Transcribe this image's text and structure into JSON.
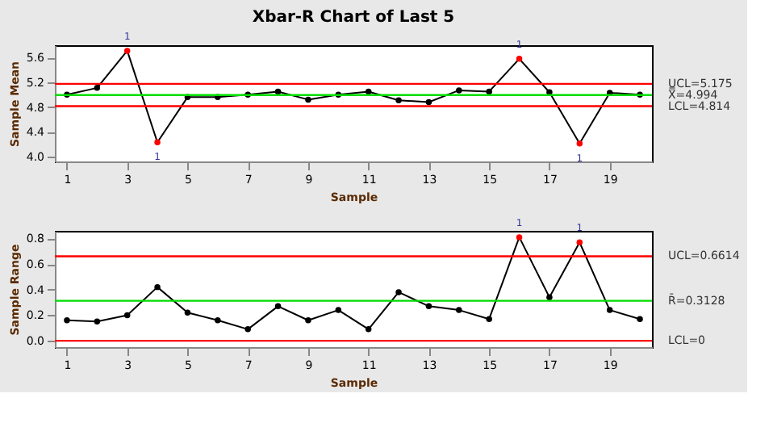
{
  "chart_data": [
    {
      "type": "line",
      "title": "Xbar-R Chart of Last 5",
      "xlabel": "Sample",
      "ylabel": "Sample Mean",
      "x": [
        1,
        2,
        3,
        4,
        5,
        6,
        7,
        8,
        9,
        10,
        11,
        12,
        13,
        14,
        15,
        16,
        17,
        18,
        19,
        20
      ],
      "series": [
        {
          "color": "#000000",
          "values": [
            5.0,
            5.11,
            5.71,
            4.23,
            4.96,
            4.96,
            5.0,
            5.05,
            4.92,
            5.0,
            5.05,
            4.91,
            4.88,
            5.07,
            5.05,
            5.58,
            5.04,
            4.21,
            5.03,
            5.0
          ],
          "colors": [
            "#000000",
            "#000000",
            "#ff0000",
            "#ff0000",
            "#000000",
            "#000000",
            "#000000",
            "#000000",
            "#000000",
            "#000000",
            "#000000",
            "#000000",
            "#000000",
            "#000000",
            "#000000",
            "#ff0000",
            "#000000",
            "#ff0000",
            "#000000",
            "#000000"
          ]
        }
      ],
      "xlim": [
        0.6,
        20.4
      ],
      "xticks": [
        1,
        3,
        5,
        7,
        9,
        11,
        13,
        15,
        17,
        19
      ],
      "ylim": [
        3.92,
        5.8
      ],
      "yticks": [
        {
          "value": 4,
          "label": "4.0"
        },
        4.4,
        4.8,
        5.2,
        5.6
      ],
      "line_style": "solid",
      "ref_lines": [
        {
          "axis": "y",
          "value": 5.175,
          "label": "UCL=5.175",
          "color": "#ff0000"
        },
        {
          "axis": "y",
          "value": 4.994,
          "label": "X̿=4.994",
          "color": "#00dd00"
        },
        {
          "axis": "y",
          "value": 4.814,
          "label": "LCL=4.814",
          "color": "#ff0000"
        }
      ],
      "annotations": [
        {
          "text": "1",
          "x": 3,
          "y": 5.71
        },
        {
          "text": "1",
          "x": 4,
          "y": 4.23
        },
        {
          "text": "1",
          "x": 16,
          "y": 5.58
        },
        {
          "text": "1",
          "x": 18,
          "y": 4.21
        }
      ],
      "marker": "circle",
      "grid": false
    },
    {
      "type": "line",
      "xlabel": "Sample",
      "ylabel": "Sample Range",
      "x": [
        1,
        2,
        3,
        4,
        5,
        6,
        7,
        8,
        9,
        10,
        11,
        12,
        13,
        14,
        15,
        16,
        17,
        18,
        19,
        20
      ],
      "series": [
        {
          "color": "#000000",
          "values": [
            0.16,
            0.15,
            0.2,
            0.42,
            0.22,
            0.16,
            0.09,
            0.27,
            0.16,
            0.24,
            0.09,
            0.38,
            0.27,
            0.24,
            0.17,
            0.81,
            0.34,
            0.77,
            0.24,
            0.17
          ],
          "colors": [
            "#000000",
            "#000000",
            "#000000",
            "#000000",
            "#000000",
            "#000000",
            "#000000",
            "#000000",
            "#000000",
            "#000000",
            "#000000",
            "#000000",
            "#000000",
            "#000000",
            "#000000",
            "#ff0000",
            "#000000",
            "#ff0000",
            "#000000",
            "#000000"
          ]
        }
      ],
      "xlim": [
        0.6,
        20.4
      ],
      "xticks": [
        1,
        3,
        5,
        7,
        9,
        11,
        13,
        15,
        17,
        19
      ],
      "ylim": [
        -0.05,
        0.86
      ],
      "yticks": [
        {
          "value": 0,
          "label": "0.0"
        },
        0.2,
        0.4,
        0.6,
        0.8
      ],
      "line_style": "solid",
      "ref_lines": [
        {
          "axis": "y",
          "value": 0.6614,
          "label": "UCL=0.6614",
          "color": "#ff0000"
        },
        {
          "axis": "y",
          "value": 0.3128,
          "label": "R̄=0.3128",
          "color": "#00dd00"
        },
        {
          "axis": "y",
          "value": 0,
          "label": "LCL=0",
          "color": "#ff0000"
        }
      ],
      "annotations": [
        {
          "text": "1",
          "x": 16,
          "y": 0.81
        },
        {
          "text": "1",
          "x": 18,
          "y": 0.77
        }
      ],
      "marker": "circle",
      "grid": false
    }
  ]
}
